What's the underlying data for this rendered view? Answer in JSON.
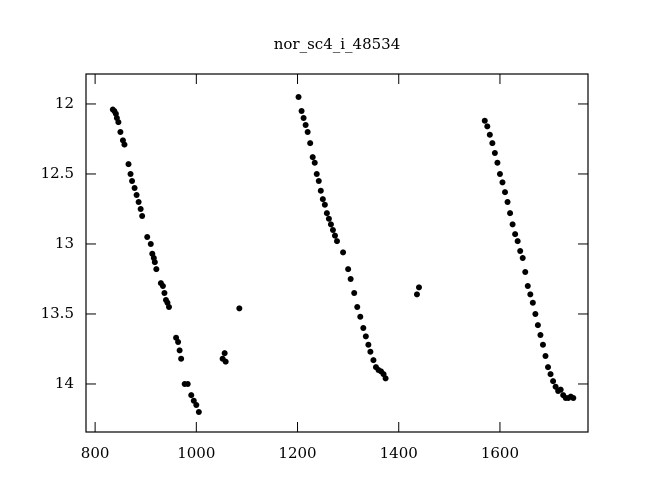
{
  "chart_data": {
    "type": "scatter",
    "title": "nor_sc4_i_48534",
    "xlim": [
      782,
      1774
    ],
    "ylim": [
      14.343,
      11.786
    ],
    "xticks": [
      800,
      1000,
      1200,
      1400,
      1600
    ],
    "yticks": [
      12,
      12.5,
      13,
      13.5,
      14
    ],
    "color": "#000000",
    "x": [
      835,
      838,
      841,
      843,
      846,
      850,
      855,
      858,
      866,
      870,
      873,
      878,
      882,
      886,
      890,
      893,
      903,
      910,
      913,
      916,
      918,
      921,
      930,
      934,
      937,
      940,
      943,
      946,
      960,
      964,
      967,
      970,
      977,
      983,
      990,
      995,
      1000,
      1005,
      1052,
      1056,
      1058,
      1085,
      1202,
      1208,
      1212,
      1216,
      1220,
      1225,
      1230,
      1234,
      1238,
      1242,
      1246,
      1250,
      1254,
      1258,
      1262,
      1266,
      1270,
      1274,
      1278,
      1290,
      1300,
      1305,
      1312,
      1318,
      1324,
      1330,
      1335,
      1340,
      1344,
      1350,
      1355,
      1360,
      1365,
      1370,
      1374,
      1436,
      1440,
      1570,
      1575,
      1580,
      1585,
      1590,
      1595,
      1600,
      1605,
      1610,
      1615,
      1620,
      1625,
      1630,
      1635,
      1640,
      1645,
      1650,
      1655,
      1660,
      1665,
      1670,
      1675,
      1680,
      1685,
      1690,
      1695,
      1700,
      1705,
      1710,
      1715,
      1720,
      1725,
      1730,
      1735,
      1740,
      1745
    ],
    "values": [
      12.04,
      12.05,
      12.07,
      12.1,
      12.13,
      12.2,
      12.26,
      12.29,
      12.43,
      12.5,
      12.55,
      12.6,
      12.65,
      12.7,
      12.75,
      12.8,
      12.95,
      13.0,
      13.07,
      13.1,
      13.13,
      13.18,
      13.28,
      13.3,
      13.35,
      13.4,
      13.42,
      13.45,
      13.67,
      13.7,
      13.76,
      13.82,
      14.0,
      14.0,
      14.08,
      14.12,
      14.15,
      14.2,
      13.82,
      13.78,
      13.84,
      13.46,
      11.95,
      12.05,
      12.1,
      12.15,
      12.2,
      12.28,
      12.38,
      12.42,
      12.5,
      12.55,
      12.62,
      12.68,
      12.72,
      12.78,
      12.82,
      12.86,
      12.9,
      12.94,
      12.98,
      13.06,
      13.18,
      13.25,
      13.35,
      13.45,
      13.52,
      13.6,
      13.66,
      13.72,
      13.77,
      13.83,
      13.88,
      13.9,
      13.91,
      13.93,
      13.96,
      13.36,
      13.31,
      12.12,
      12.16,
      12.22,
      12.28,
      12.35,
      12.42,
      12.5,
      12.56,
      12.63,
      12.7,
      12.78,
      12.86,
      12.93,
      12.98,
      13.05,
      13.1,
      13.2,
      13.3,
      13.36,
      13.42,
      13.5,
      13.58,
      13.65,
      13.72,
      13.8,
      13.88,
      13.93,
      13.98,
      14.02,
      14.05,
      14.04,
      14.08,
      14.1,
      14.1,
      14.09,
      14.1
    ]
  }
}
